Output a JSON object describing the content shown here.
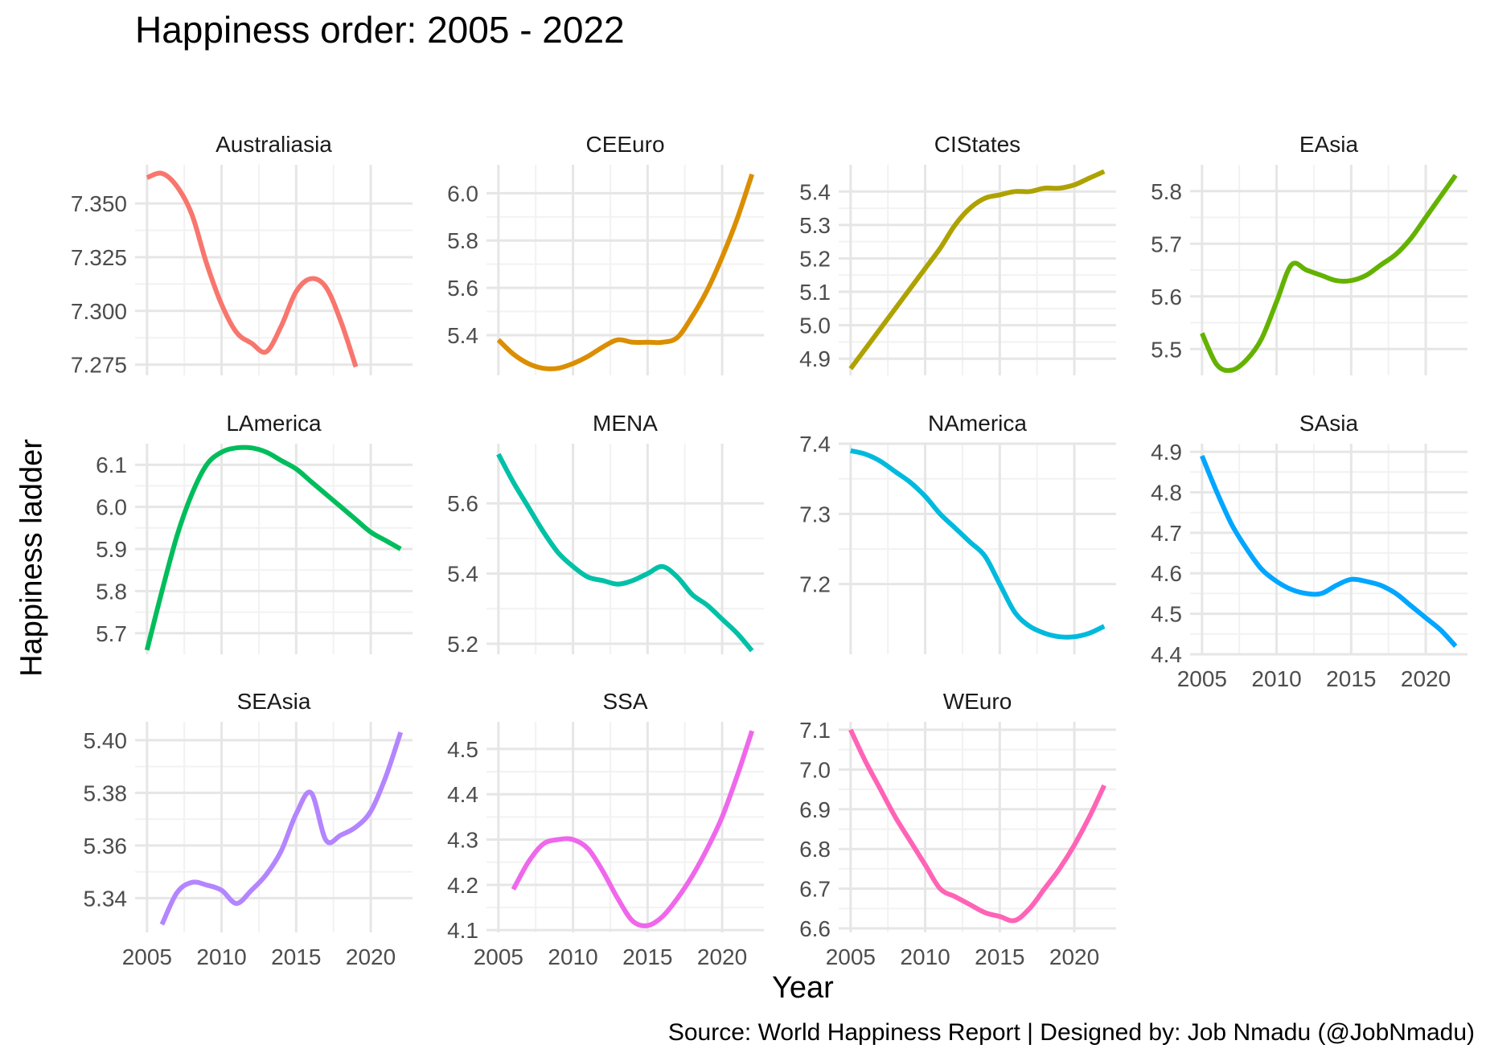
{
  "chart_data": {
    "type": "line",
    "title": "Happiness order: 2005 - 2022",
    "xlabel": "Year",
    "ylabel": "Happiness ladder",
    "caption": "Source: World Happiness Report  |  Designed by: Job Nmadu (@JobNmadu)",
    "grid": true,
    "legend": "none",
    "xlim": [
      2004.2,
      2022.8
    ],
    "x_ticks": [
      2005,
      2010,
      2015,
      2020
    ],
    "panels": [
      {
        "name": "Australiasia",
        "color": "#F8766D",
        "ylim": [
          7.27,
          7.368
        ],
        "y_ticks": [
          7.275,
          7.3,
          7.325,
          7.35
        ],
        "x": [
          2005,
          2006,
          2007,
          2008,
          2009,
          2010,
          2011,
          2012,
          2013,
          2014,
          2015,
          2016,
          2017,
          2018,
          2019
        ],
        "values": [
          7.362,
          7.364,
          7.358,
          7.345,
          7.322,
          7.303,
          7.29,
          7.285,
          7.281,
          7.293,
          7.309,
          7.315,
          7.311,
          7.295,
          7.274
        ]
      },
      {
        "name": "CEEuro",
        "color": "#DB8E00",
        "ylim": [
          5.23,
          6.12
        ],
        "y_ticks": [
          5.4,
          5.6,
          5.8,
          6.0
        ],
        "x": [
          2005,
          2006,
          2007,
          2008,
          2009,
          2010,
          2011,
          2012,
          2013,
          2014,
          2015,
          2016,
          2017,
          2018,
          2019,
          2020,
          2021,
          2022
        ],
        "values": [
          5.38,
          5.32,
          5.28,
          5.26,
          5.26,
          5.28,
          5.31,
          5.35,
          5.38,
          5.37,
          5.37,
          5.37,
          5.39,
          5.48,
          5.59,
          5.73,
          5.89,
          6.08
        ]
      },
      {
        "name": "CIStates",
        "color": "#AEA200",
        "ylim": [
          4.85,
          5.48
        ],
        "y_ticks": [
          4.9,
          5.0,
          5.1,
          5.2,
          5.3,
          5.4
        ],
        "x": [
          2005,
          2006,
          2007,
          2008,
          2009,
          2010,
          2011,
          2012,
          2013,
          2014,
          2015,
          2016,
          2017,
          2018,
          2019,
          2020,
          2021,
          2022
        ],
        "values": [
          4.87,
          4.93,
          4.99,
          5.05,
          5.11,
          5.17,
          5.23,
          5.3,
          5.35,
          5.38,
          5.39,
          5.4,
          5.4,
          5.41,
          5.41,
          5.42,
          5.44,
          5.46
        ]
      },
      {
        "name": "EAsia",
        "color": "#64B200",
        "ylim": [
          5.45,
          5.85
        ],
        "y_ticks": [
          5.5,
          5.6,
          5.7,
          5.8
        ],
        "x": [
          2005,
          2006,
          2007,
          2008,
          2009,
          2010,
          2011,
          2012,
          2013,
          2014,
          2015,
          2016,
          2017,
          2018,
          2019,
          2020,
          2021,
          2022
        ],
        "values": [
          5.53,
          5.47,
          5.46,
          5.48,
          5.52,
          5.59,
          5.66,
          5.65,
          5.64,
          5.63,
          5.63,
          5.64,
          5.66,
          5.68,
          5.71,
          5.75,
          5.79,
          5.83
        ]
      },
      {
        "name": "LAmerica",
        "color": "#00BD5C",
        "ylim": [
          5.65,
          6.15
        ],
        "y_ticks": [
          5.7,
          5.8,
          5.9,
          6.0,
          6.1
        ],
        "x": [
          2005,
          2006,
          2007,
          2008,
          2009,
          2010,
          2011,
          2012,
          2013,
          2014,
          2015,
          2016,
          2017,
          2018,
          2019,
          2020,
          2021,
          2022
        ],
        "values": [
          5.66,
          5.8,
          5.93,
          6.03,
          6.1,
          6.13,
          6.14,
          6.14,
          6.13,
          6.11,
          6.09,
          6.06,
          6.03,
          6.0,
          5.97,
          5.94,
          5.92,
          5.9
        ]
      },
      {
        "name": "MENA",
        "color": "#00C1A7",
        "ylim": [
          5.17,
          5.77
        ],
        "y_ticks": [
          5.2,
          5.4,
          5.6
        ],
        "x": [
          2005,
          2006,
          2007,
          2008,
          2009,
          2010,
          2011,
          2012,
          2013,
          2014,
          2015,
          2016,
          2017,
          2018,
          2019,
          2020,
          2021,
          2022
        ],
        "values": [
          5.74,
          5.66,
          5.59,
          5.52,
          5.46,
          5.42,
          5.39,
          5.38,
          5.37,
          5.38,
          5.4,
          5.42,
          5.39,
          5.34,
          5.31,
          5.27,
          5.23,
          5.18
        ]
      },
      {
        "name": "NAmerica",
        "color": "#00BADE",
        "ylim": [
          7.1,
          7.4
        ],
        "y_ticks": [
          7.2,
          7.3,
          7.4
        ],
        "x": [
          2005,
          2006,
          2007,
          2008,
          2009,
          2010,
          2011,
          2012,
          2013,
          2014,
          2015,
          2016,
          2017,
          2018,
          2019,
          2020,
          2021,
          2022
        ],
        "values": [
          7.39,
          7.385,
          7.375,
          7.36,
          7.345,
          7.325,
          7.3,
          7.28,
          7.26,
          7.24,
          7.2,
          7.16,
          7.14,
          7.13,
          7.125,
          7.125,
          7.13,
          7.14
        ]
      },
      {
        "name": "SAsia",
        "color": "#00A6FF",
        "ylim": [
          4.4,
          4.92
        ],
        "y_ticks": [
          4.4,
          4.5,
          4.6,
          4.7,
          4.8,
          4.9
        ],
        "x": [
          2005,
          2006,
          2007,
          2008,
          2009,
          2010,
          2011,
          2012,
          2013,
          2014,
          2015,
          2016,
          2017,
          2018,
          2019,
          2020,
          2021,
          2022
        ],
        "values": [
          4.89,
          4.8,
          4.72,
          4.66,
          4.61,
          4.58,
          4.56,
          4.55,
          4.55,
          4.57,
          4.585,
          4.58,
          4.57,
          4.55,
          4.52,
          4.49,
          4.46,
          4.42
        ]
      },
      {
        "name": "SEAsia",
        "color": "#B385FF",
        "ylim": [
          5.327,
          5.407
        ],
        "y_ticks": [
          5.34,
          5.36,
          5.38,
          5.4
        ],
        "x": [
          2006,
          2007,
          2008,
          2009,
          2010,
          2011,
          2012,
          2013,
          2014,
          2015,
          2016,
          2017,
          2018,
          2019,
          2020,
          2021,
          2022
        ],
        "values": [
          5.33,
          5.342,
          5.346,
          5.345,
          5.343,
          5.338,
          5.343,
          5.349,
          5.358,
          5.372,
          5.38,
          5.362,
          5.364,
          5.367,
          5.373,
          5.386,
          5.403
        ]
      },
      {
        "name": "SSA",
        "color": "#EF67EB",
        "ylim": [
          4.095,
          4.56
        ],
        "y_ticks": [
          4.1,
          4.2,
          4.3,
          4.4,
          4.5
        ],
        "x": [
          2006,
          2007,
          2008,
          2009,
          2010,
          2011,
          2012,
          2013,
          2014,
          2015,
          2016,
          2017,
          2018,
          2019,
          2020,
          2021,
          2022
        ],
        "values": [
          4.19,
          4.25,
          4.29,
          4.3,
          4.3,
          4.28,
          4.23,
          4.17,
          4.12,
          4.11,
          4.13,
          4.17,
          4.22,
          4.28,
          4.35,
          4.44,
          4.54
        ]
      },
      {
        "name": "WEuro",
        "color": "#FF63B6",
        "ylim": [
          6.59,
          7.12
        ],
        "y_ticks": [
          6.6,
          6.7,
          6.8,
          6.9,
          7.0,
          7.1
        ],
        "x": [
          2005,
          2006,
          2007,
          2008,
          2009,
          2010,
          2011,
          2012,
          2013,
          2014,
          2015,
          2016,
          2017,
          2018,
          2019,
          2020,
          2021,
          2022
        ],
        "values": [
          7.1,
          7.02,
          6.95,
          6.88,
          6.82,
          6.76,
          6.7,
          6.68,
          6.66,
          6.64,
          6.63,
          6.62,
          6.65,
          6.7,
          6.75,
          6.81,
          6.88,
          6.96
        ]
      }
    ]
  }
}
